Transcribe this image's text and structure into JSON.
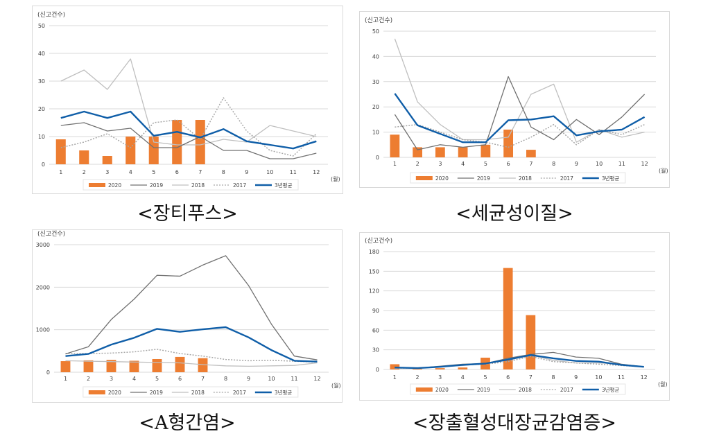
{
  "legend": {
    "s2020": "2020",
    "s2019": "2019",
    "s2018": "2018",
    "s2017": "2017",
    "avg": "3년평균"
  },
  "colors": {
    "s2020": "#ED7D31",
    "s2019": "#707070",
    "s2018": "#BFBFBF",
    "s2017": "#A6A6A6",
    "avg": "#0F5EA8",
    "frame": "#D9D9D9",
    "grid": "#D9D9D9",
    "text": "#404040"
  },
  "chart_data": [
    {
      "type": "bar",
      "caption": "<장티푸스>",
      "ylabel": "(신고건수)",
      "xunit": "(월)",
      "ylim": [
        0,
        50
      ],
      "yticks": [
        0,
        10,
        20,
        30,
        40,
        50
      ],
      "categories": [
        "1",
        "2",
        "3",
        "4",
        "5",
        "6",
        "7",
        "8",
        "9",
        "10",
        "11",
        "12"
      ],
      "series": [
        {
          "name": "2020",
          "kind": "bar",
          "values": [
            9,
            5,
            3,
            10,
            10,
            16,
            16,
            null,
            null,
            null,
            null,
            null
          ]
        },
        {
          "name": "2019",
          "kind": "line",
          "values": [
            14,
            15,
            12,
            13,
            6,
            6,
            10,
            5,
            5,
            2,
            2,
            4
          ]
        },
        {
          "name": "2018",
          "kind": "line",
          "values": [
            30,
            34,
            27,
            38,
            8,
            7,
            7,
            9,
            8,
            14,
            12,
            10
          ]
        },
        {
          "name": "2017",
          "kind": "dotted",
          "values": [
            6,
            8,
            11,
            6,
            15,
            16,
            9,
            24,
            12,
            5,
            3,
            11
          ]
        },
        {
          "name": "3년평균",
          "kind": "avg",
          "values": [
            16.7,
            19,
            16.7,
            19,
            10.3,
            11.7,
            9.7,
            12.7,
            8.3,
            7,
            5.7,
            8.3
          ]
        }
      ]
    },
    {
      "type": "bar",
      "caption": "<세균성이질>",
      "ylabel": "(신고건수)",
      "xunit": "(월)",
      "ylim": [
        0,
        50
      ],
      "yticks": [
        0,
        10,
        20,
        30,
        40,
        50
      ],
      "categories": [
        "1",
        "2",
        "3",
        "4",
        "5",
        "6",
        "7",
        "8",
        "9",
        "10",
        "11",
        "12"
      ],
      "series": [
        {
          "name": "2020",
          "kind": "bar",
          "values": [
            9,
            4,
            4,
            4,
            5,
            11,
            3,
            null,
            null,
            null,
            null,
            null
          ]
        },
        {
          "name": "2019",
          "kind": "line",
          "values": [
            17,
            3,
            5,
            4,
            5,
            32,
            12,
            7,
            15,
            9,
            16,
            25
          ]
        },
        {
          "name": "2018",
          "kind": "line",
          "values": [
            47,
            22,
            13,
            7,
            7,
            8,
            25,
            29,
            6,
            11,
            8,
            10
          ]
        },
        {
          "name": "2017",
          "kind": "dotted",
          "values": [
            12,
            13,
            10,
            7,
            6,
            4,
            8,
            13,
            5,
            11,
            9,
            13
          ]
        },
        {
          "name": "3년평균",
          "kind": "avg",
          "values": [
            25.3,
            12.7,
            9.3,
            6,
            6,
            14.7,
            15,
            16.3,
            8.7,
            10.3,
            11,
            16
          ]
        }
      ]
    },
    {
      "type": "bar",
      "caption": "<A형간염>",
      "ylabel": "(신고건수)",
      "xunit": "(월)",
      "ylim": [
        0,
        3000
      ],
      "yticks": [
        0,
        1000,
        2000,
        3000
      ],
      "categories": [
        "1",
        "2",
        "3",
        "4",
        "5",
        "6",
        "7",
        "8",
        "9",
        "10",
        "11",
        "12"
      ],
      "series": [
        {
          "name": "2020",
          "kind": "bar",
          "values": [
            260,
            280,
            290,
            270,
            310,
            360,
            330,
            null,
            null,
            null,
            null,
            null
          ]
        },
        {
          "name": "2019",
          "kind": "line",
          "values": [
            430,
            600,
            1240,
            1720,
            2280,
            2260,
            2520,
            2740,
            2040,
            1130,
            380,
            290
          ]
        },
        {
          "name": "2018",
          "kind": "line",
          "values": [
            270,
            260,
            250,
            240,
            230,
            220,
            180,
            150,
            140,
            150,
            160,
            220
          ]
        },
        {
          "name": "2017",
          "kind": "dotted",
          "values": [
            440,
            440,
            450,
            480,
            540,
            440,
            380,
            300,
            270,
            280,
            260,
            240
          ]
        },
        {
          "name": "3년평균",
          "kind": "avg",
          "values": [
            380,
            430,
            650,
            810,
            1020,
            950,
            1010,
            1060,
            820,
            520,
            270,
            250
          ]
        }
      ]
    },
    {
      "type": "bar",
      "caption": "<장출혈성대장균감염증>",
      "ylabel": "(신고건수)",
      "xunit": "(월)",
      "ylim": [
        0,
        180
      ],
      "yticks": [
        0,
        30,
        60,
        90,
        120,
        150,
        180
      ],
      "categories": [
        "1",
        "2",
        "3",
        "4",
        "5",
        "6",
        "7",
        "8",
        "9",
        "10",
        "11",
        "12"
      ],
      "series": [
        {
          "name": "2020",
          "kind": "bar",
          "values": [
            8,
            1,
            2,
            3,
            18,
            155,
            83,
            null,
            null,
            null,
            null,
            null
          ]
        },
        {
          "name": "2019",
          "kind": "line",
          "values": [
            3,
            2,
            5,
            8,
            9,
            17,
            23,
            26,
            19,
            17,
            8,
            4
          ]
        },
        {
          "name": "2018",
          "kind": "line",
          "values": [
            2,
            2,
            4,
            6,
            9,
            16,
            22,
            14,
            10,
            10,
            8,
            4
          ]
        },
        {
          "name": "2017",
          "kind": "dotted",
          "values": [
            2,
            2,
            4,
            7,
            8,
            12,
            20,
            12,
            10,
            8,
            6,
            4
          ]
        },
        {
          "name": "3년평균",
          "kind": "avg",
          "values": [
            3,
            2,
            4,
            7,
            9,
            15,
            22,
            17,
            13,
            12,
            7,
            4
          ]
        }
      ]
    }
  ]
}
